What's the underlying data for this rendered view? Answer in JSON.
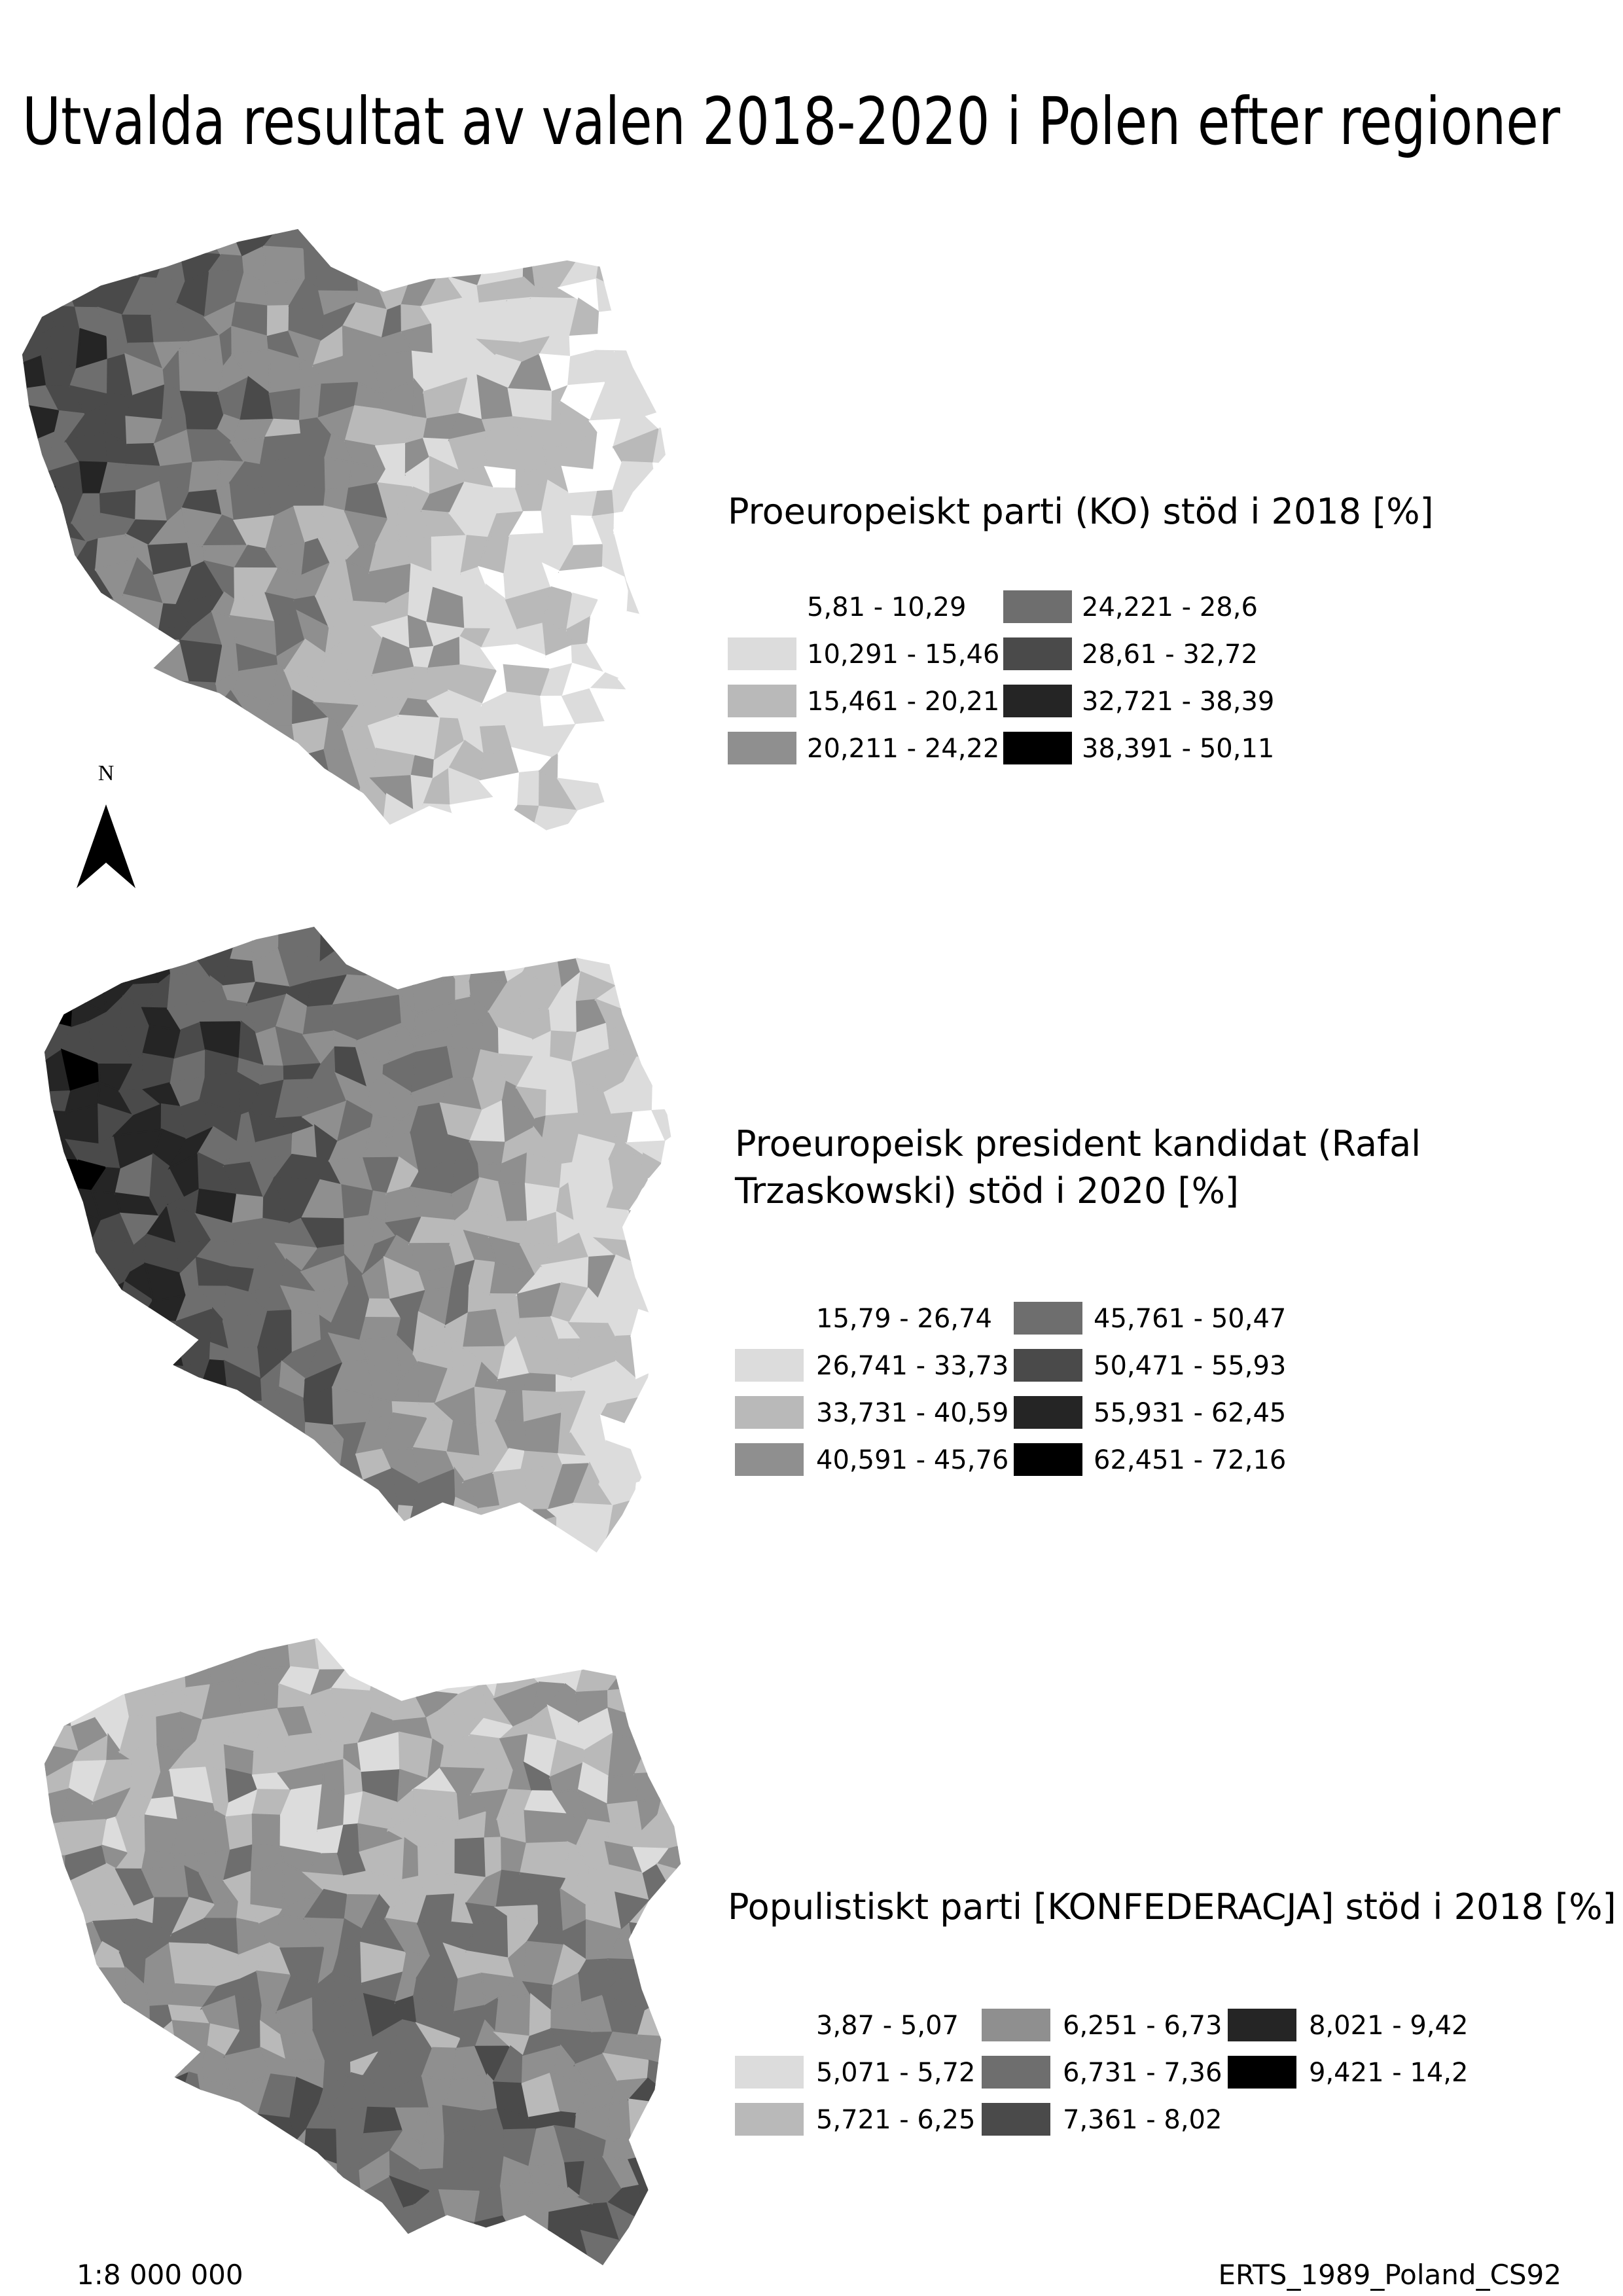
{
  "title": "Utvalda resultat av valen 2018-2020 i Polen efter regioner",
  "maps": [
    {
      "legend_title": [
        "Proeuropeiskt parti (KO) stöd i 2018 [%]"
      ],
      "classes": [
        {
          "label": "5,81 - 10,29",
          "color": "#ffffff"
        },
        {
          "label": "10,291 - 15,46",
          "color": "#dcdcdc"
        },
        {
          "label": "15,461 - 20,21",
          "color": "#b9b9b9"
        },
        {
          "label": "20,211 - 24,22",
          "color": "#8f8f8f"
        },
        {
          "label": "24,221 - 28,6",
          "color": "#6e6e6e"
        },
        {
          "label": "28,61 - 32,72",
          "color": "#4a4a4a"
        },
        {
          "label": "32,721 - 38,39",
          "color": "#252525"
        },
        {
          "label": "38,391 - 50,11",
          "color": "#000000"
        }
      ]
    },
    {
      "legend_title": [
        "Proeuropeisk president kandidat (Rafal",
        "Trzaskowski) stöd i 2020 [%]"
      ],
      "classes": [
        {
          "label": "15,79 - 26,74",
          "color": "#ffffff"
        },
        {
          "label": "26,741 - 33,73",
          "color": "#dcdcdc"
        },
        {
          "label": "33,731 - 40,59",
          "color": "#b9b9b9"
        },
        {
          "label": "40,591 - 45,76",
          "color": "#8f8f8f"
        },
        {
          "label": "45,761 - 50,47",
          "color": "#6e6e6e"
        },
        {
          "label": "50,471 - 55,93",
          "color": "#4a4a4a"
        },
        {
          "label": "55,931 - 62,45",
          "color": "#252525"
        },
        {
          "label": "62,451 - 72,16",
          "color": "#000000"
        }
      ]
    },
    {
      "legend_title": [
        "Populistiskt parti [KONFEDERACJA] stöd i 2018 [%]"
      ],
      "classes": [
        {
          "label": "3,87 - 5,07",
          "color": "#ffffff"
        },
        {
          "label": "5,071 - 5,72",
          "color": "#dcdcdc"
        },
        {
          "label": "5,721 - 6,25",
          "color": "#b9b9b9"
        },
        {
          "label": "6,251 - 6,73",
          "color": "#8f8f8f"
        },
        {
          "label": "6,731 - 7,36",
          "color": "#6e6e6e"
        },
        {
          "label": "7,361 - 8,02",
          "color": "#4a4a4a"
        },
        {
          "label": "8,021 - 9,42",
          "color": "#252525"
        },
        {
          "label": "9,421 - 14,2",
          "color": "#000000"
        }
      ]
    }
  ],
  "north_arrow": "N",
  "scale": "1:8 000 000",
  "projection": "ERTS_1989_Poland_CS92"
}
